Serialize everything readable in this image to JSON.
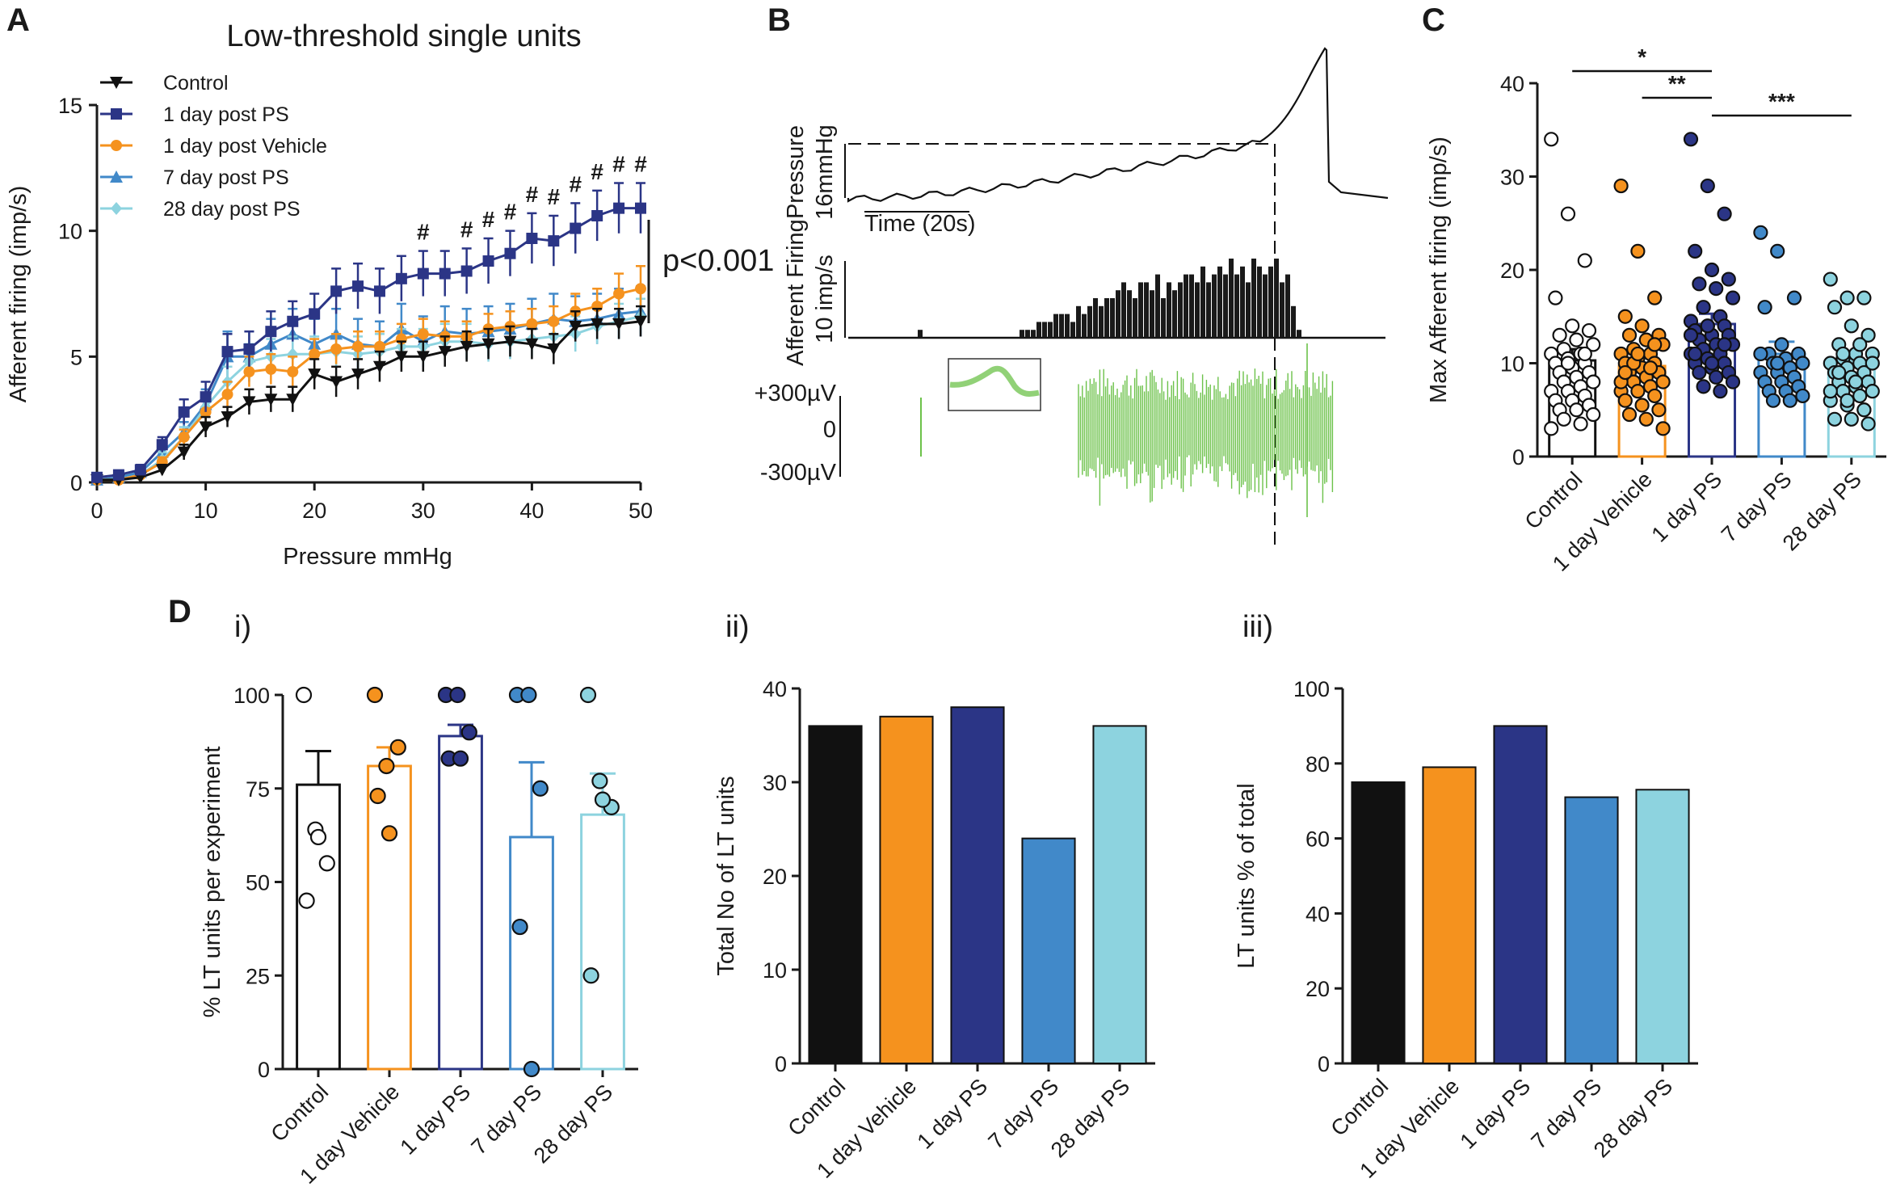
{
  "panel_labels": {
    "a": "A",
    "b": "B",
    "c": "C",
    "d": "D",
    "d1": "i)",
    "d2": "ii)",
    "d3": "iii)"
  },
  "colors": {
    "control": "#111111",
    "vehicle": "#f5921e",
    "ps1": "#2b3586",
    "ps7": "#4189c9",
    "ps28": "#8dd3df",
    "trace_green": "#6cc24a"
  },
  "panel_b": {
    "pressure_label": "Pressure",
    "pressure_scale": "16mmHg",
    "time_scale": "Time (20s)",
    "firing_label": "Afferent Firing",
    "firing_scale": "10 imp/s",
    "voltage_labels": [
      "+300µV",
      "0",
      "-300µV"
    ],
    "histogram_bins": [
      0,
      0,
      0,
      0,
      0,
      0,
      0,
      0,
      1,
      0,
      0,
      0,
      0,
      0,
      0,
      0,
      0,
      0,
      0,
      0,
      0,
      0,
      0,
      0,
      0,
      0,
      1,
      1,
      1,
      2,
      2,
      2,
      3,
      3,
      3,
      2,
      4,
      3,
      4,
      5,
      4,
      5,
      5,
      6,
      7,
      6,
      5,
      7,
      7,
      6,
      8,
      5,
      7,
      6,
      7,
      8,
      8,
      7,
      9,
      7,
      8,
      9,
      8,
      10,
      8,
      9,
      7,
      10,
      9,
      8,
      9,
      10,
      7,
      8,
      4,
      1
    ]
  },
  "chart_data": [
    {
      "id": "A",
      "type": "line",
      "title": "Low-threshold single units",
      "xlabel": "Pressure mmHg",
      "ylabel": "Afferent firing (imp/s)",
      "xlim": [
        0,
        50
      ],
      "ylim": [
        0,
        15
      ],
      "xticks": [
        0,
        10,
        20,
        30,
        40,
        50
      ],
      "yticks": [
        0,
        5,
        10,
        15
      ],
      "x": [
        0,
        2,
        4,
        6,
        8,
        10,
        12,
        14,
        16,
        18,
        20,
        22,
        24,
        26,
        28,
        30,
        32,
        34,
        36,
        38,
        40,
        42,
        44,
        46,
        48,
        50
      ],
      "series": [
        {
          "name": "Control",
          "marker": "triangle-down",
          "values": [
            0.1,
            0.1,
            0.2,
            0.5,
            1.2,
            2.2,
            2.6,
            3.2,
            3.3,
            3.3,
            4.3,
            4.0,
            4.3,
            4.6,
            5.0,
            5.0,
            5.2,
            5.4,
            5.5,
            5.6,
            5.5,
            5.3,
            6.2,
            6.3,
            6.3,
            6.4
          ],
          "errors": [
            0.1,
            0.1,
            0.1,
            0.2,
            0.3,
            0.4,
            0.4,
            0.5,
            0.5,
            0.5,
            0.6,
            0.6,
            0.6,
            0.6,
            0.6,
            0.6,
            0.6,
            0.6,
            0.6,
            0.6,
            0.6,
            0.6,
            0.6,
            0.6,
            0.6,
            0.6
          ]
        },
        {
          "name": "1 day post PS",
          "marker": "square",
          "values": [
            0.2,
            0.3,
            0.5,
            1.5,
            2.8,
            3.4,
            5.2,
            5.3,
            6.0,
            6.4,
            6.7,
            7.6,
            7.8,
            7.6,
            8.1,
            8.3,
            8.3,
            8.4,
            8.8,
            9.1,
            9.7,
            9.6,
            10.1,
            10.6,
            10.9,
            10.9
          ],
          "errors": [
            0.1,
            0.1,
            0.2,
            0.3,
            0.5,
            0.6,
            0.7,
            0.7,
            0.8,
            0.8,
            0.8,
            0.9,
            0.9,
            0.9,
            0.9,
            0.9,
            0.9,
            0.9,
            0.9,
            0.9,
            1.0,
            1.0,
            1.0,
            1.0,
            1.0,
            1.0
          ]
        },
        {
          "name": "1 day post Vehicle",
          "marker": "circle",
          "values": [
            0.1,
            0.1,
            0.3,
            0.8,
            1.8,
            2.8,
            3.5,
            4.4,
            4.5,
            4.4,
            5.1,
            5.3,
            5.4,
            5.4,
            5.7,
            5.9,
            5.8,
            5.8,
            6.1,
            6.2,
            6.3,
            6.4,
            6.8,
            7.0,
            7.5,
            7.7
          ],
          "errors": [
            0.1,
            0.1,
            0.1,
            0.2,
            0.3,
            0.5,
            0.5,
            0.6,
            0.6,
            0.6,
            0.6,
            0.6,
            0.6,
            0.6,
            0.6,
            0.6,
            0.6,
            0.6,
            0.6,
            0.6,
            0.6,
            0.6,
            0.7,
            0.7,
            0.8,
            0.9
          ]
        },
        {
          "name": "7 day post PS",
          "marker": "triangle-up",
          "values": [
            0.1,
            0.2,
            0.4,
            1.2,
            2.0,
            3.1,
            5.0,
            5.0,
            5.5,
            5.9,
            5.5,
            5.9,
            5.5,
            5.4,
            6.1,
            5.6,
            6.0,
            5.9,
            6.0,
            6.1,
            6.3,
            6.5,
            6.4,
            6.5,
            6.7,
            6.8
          ],
          "errors": [
            0.1,
            0.1,
            0.2,
            0.3,
            0.4,
            0.6,
            1.0,
            1.0,
            1.0,
            1.0,
            1.0,
            1.0,
            1.0,
            1.0,
            1.0,
            1.0,
            1.0,
            1.0,
            1.0,
            1.0,
            1.0,
            1.0,
            1.0,
            1.0,
            1.0,
            1.0
          ]
        },
        {
          "name": "28 day post PS",
          "marker": "diamond",
          "values": [
            0.1,
            0.1,
            0.3,
            0.9,
            1.8,
            3.0,
            4.0,
            4.8,
            5.0,
            5.1,
            5.1,
            5.2,
            5.1,
            5.2,
            5.4,
            5.4,
            5.6,
            5.6,
            5.5,
            5.6,
            5.7,
            5.8,
            5.9,
            6.2,
            6.4,
            6.6
          ],
          "errors": [
            0.1,
            0.1,
            0.1,
            0.3,
            0.4,
            0.5,
            0.6,
            0.7,
            0.7,
            0.7,
            0.7,
            0.7,
            0.7,
            0.7,
            0.7,
            0.7,
            0.7,
            0.7,
            0.7,
            0.7,
            0.7,
            0.7,
            0.7,
            0.7,
            0.7,
            0.7
          ]
        }
      ],
      "annotations": {
        "hash": "#",
        "hash_positions_x": [
          30,
          34,
          36,
          38,
          40,
          42,
          44,
          46,
          48,
          50
        ],
        "pvalue": "p<0.001"
      }
    },
    {
      "id": "C",
      "type": "bar",
      "ylabel": "Max Afferent firing (imp/s)",
      "ylim": [
        0,
        40
      ],
      "yticks": [
        0,
        10,
        20,
        30,
        40
      ],
      "categories": [
        "Control",
        "1 day Vehicle",
        "1 day PS",
        "7 day PS",
        "28 day PS"
      ],
      "values": [
        10.3,
        9.7,
        14.2,
        11.0,
        9.6
      ],
      "errors": [
        1.2,
        0.9,
        1.1,
        1.3,
        0.9
      ],
      "points": [
        [
          34,
          26,
          21,
          17,
          14,
          13.5,
          13,
          12.5,
          12,
          11.5,
          11,
          11,
          10.5,
          10,
          10,
          9.5,
          9,
          9,
          8.5,
          8,
          8,
          7.5,
          7,
          7,
          6.5,
          6,
          6,
          5.5,
          5,
          5,
          4.5,
          4,
          3.5,
          3,
          10,
          11
        ],
        [
          29,
          22,
          17,
          15,
          14,
          13,
          13,
          12.5,
          12,
          11.5,
          11,
          11,
          10.5,
          10,
          10,
          9.5,
          9,
          9,
          8.5,
          8,
          8,
          7.5,
          7,
          7,
          6.5,
          6,
          5.5,
          5,
          4.5,
          4,
          3,
          10,
          9.5,
          8,
          11,
          12,
          9
        ],
        [
          34,
          29,
          26,
          22,
          20,
          19,
          18.5,
          18,
          17,
          16,
          15,
          14.5,
          14,
          14,
          13.5,
          13,
          13,
          12.5,
          12,
          12,
          11.5,
          11,
          11,
          10.5,
          10,
          10,
          9.5,
          9,
          9,
          8.5,
          8,
          7.5,
          7,
          13,
          14,
          12,
          11,
          10
        ],
        [
          24,
          22,
          17,
          16,
          12,
          11,
          11,
          10.5,
          10,
          10,
          9.5,
          9,
          9,
          8.5,
          8,
          8,
          7.5,
          7,
          7,
          6.5,
          6,
          6,
          11,
          10
        ],
        [
          19,
          17,
          17,
          16,
          14,
          13,
          12,
          11,
          11,
          10.5,
          10,
          10,
          9.5,
          9,
          9,
          8.5,
          8,
          8,
          7.5,
          7,
          7,
          6.5,
          6,
          5.5,
          5,
          4,
          4,
          3.5,
          9,
          8,
          10,
          11,
          12,
          7,
          6,
          5
        ]
      ],
      "significance": [
        {
          "from": 0,
          "to": 2,
          "label": "*"
        },
        {
          "from": 1,
          "to": 2,
          "label": "**"
        },
        {
          "from": 2,
          "to": 4,
          "label": "***"
        }
      ]
    },
    {
      "id": "D-i",
      "type": "bar",
      "ylabel": "% LT units per experiment",
      "ylim": [
        0,
        100
      ],
      "yticks": [
        0,
        25,
        50,
        75,
        100
      ],
      "categories": [
        "Control",
        "1 day Vehicle",
        "1 day PS",
        "7 day PS",
        "28 day PS"
      ],
      "values": [
        76,
        81,
        89,
        62,
        68
      ],
      "errors": [
        9,
        5,
        3,
        20,
        11
      ],
      "points": [
        [
          100,
          64,
          55,
          45,
          62
        ],
        [
          100,
          81,
          86,
          73,
          63
        ],
        [
          100,
          100,
          90,
          83,
          83
        ],
        [
          100,
          100,
          75,
          38,
          0
        ],
        [
          100,
          77,
          70,
          25,
          72
        ]
      ]
    },
    {
      "id": "D-ii",
      "type": "bar",
      "ylabel": "Total No of LT units",
      "ylim": [
        0,
        40
      ],
      "yticks": [
        0,
        10,
        20,
        30,
        40
      ],
      "categories": [
        "Control",
        "1 day Vehicle",
        "1 day PS",
        "7 day PS",
        "28 day PS"
      ],
      "values": [
        36,
        37,
        38,
        24,
        36
      ]
    },
    {
      "id": "D-iii",
      "type": "bar",
      "ylabel": "LT units % of total",
      "ylim": [
        0,
        100
      ],
      "yticks": [
        0,
        20,
        40,
        60,
        80,
        100
      ],
      "categories": [
        "Control",
        "1 day Vehicle",
        "1 day PS",
        "7 day PS",
        "28 day PS"
      ],
      "values": [
        75,
        79,
        90,
        71,
        73
      ]
    }
  ]
}
